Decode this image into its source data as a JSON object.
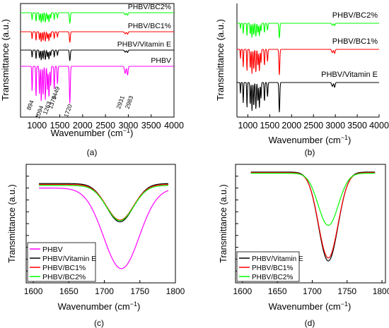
{
  "chart_data": [
    {
      "type": "line",
      "panel_label": "(a)",
      "xlabel": "Wavenumber",
      "xlabel_unit_base": "(cm",
      "xlabel_unit_sup": "−1",
      "xlabel_unit_close": ")",
      "ylabel": "Transmittance (a.u.)",
      "xlim": [
        640,
        4000
      ],
      "x_ticks": [
        "1000",
        "1500",
        "2000",
        "2500",
        "3000",
        "3500",
        "4000"
      ],
      "y_ticks": [],
      "series": [
        {
          "name": "PHBV/BC2%",
          "color": "#00ff00",
          "offset": 3,
          "amp": 0.26
        },
        {
          "name": "PHBV/BC1%",
          "color": "#ff0000",
          "offset": 2,
          "amp": 0.26
        },
        {
          "name": "PHBV/Vitamin E",
          "color": "#000000",
          "offset": 1,
          "amp": 0.26
        },
        {
          "name": "PHBV",
          "color": "#ff00ff",
          "offset": 0,
          "amp": 0.9
        }
      ],
      "bands": [
        {
          "x": 894,
          "depth": 0.65,
          "width": 7
        },
        {
          "x": 980,
          "depth": 0.8,
          "width": 7
        },
        {
          "x": 1054,
          "depth": 0.7,
          "width": 8
        },
        {
          "x": 1094,
          "depth": 0.9,
          "width": 8
        },
        {
          "x": 1135,
          "depth": 0.75,
          "width": 8
        },
        {
          "x": 1183,
          "depth": 0.85,
          "width": 9
        },
        {
          "x": 1228,
          "depth": 0.6,
          "width": 8
        },
        {
          "x": 1263,
          "depth": 0.8,
          "width": 9
        },
        {
          "x": 1300,
          "depth": 0.5,
          "width": 8
        },
        {
          "x": 1379,
          "depth": 0.6,
          "width": 8
        },
        {
          "x": 1449,
          "depth": 0.45,
          "width": 9
        },
        {
          "x": 1720,
          "depth": 0.95,
          "width": 10
        },
        {
          "x": 2931,
          "depth": 0.18,
          "width": 15
        },
        {
          "x": 2983,
          "depth": 0.22,
          "width": 12
        }
      ],
      "annotations": [
        "894",
        "1094",
        "1263",
        "1379",
        "1449",
        "1720",
        "2931",
        "2983"
      ]
    },
    {
      "type": "line",
      "panel_label": "(b)",
      "xlabel": "Wavenumber",
      "xlabel_unit_base": "(cm",
      "xlabel_unit_sup": "−1",
      "xlabel_unit_close": ")",
      "ylabel": "Transmittance (a.u.)",
      "xlim": [
        750,
        4000
      ],
      "x_ticks": [
        "1000",
        "1500",
        "2000",
        "2500",
        "3000",
        "3500",
        "4000"
      ],
      "y_ticks": [],
      "series": [
        {
          "name": "PHBV/BC2%",
          "color": "#00ff00",
          "offset": 2,
          "amp": 0.36
        },
        {
          "name": "PHBV/BC1%",
          "color": "#ff0000",
          "offset": 1,
          "amp": 0.62
        },
        {
          "name": "PHBV/Vitamin E",
          "color": "#000000",
          "offset": 0,
          "amp": 0.72
        }
      ],
      "bands": [
        {
          "x": 830,
          "depth": 0.35,
          "width": 6
        },
        {
          "x": 894,
          "depth": 0.65,
          "width": 7
        },
        {
          "x": 980,
          "depth": 0.8,
          "width": 7
        },
        {
          "x": 1054,
          "depth": 0.7,
          "width": 8
        },
        {
          "x": 1094,
          "depth": 0.9,
          "width": 8
        },
        {
          "x": 1135,
          "depth": 0.75,
          "width": 8
        },
        {
          "x": 1183,
          "depth": 0.85,
          "width": 9
        },
        {
          "x": 1228,
          "depth": 0.6,
          "width": 8
        },
        {
          "x": 1263,
          "depth": 0.8,
          "width": 9
        },
        {
          "x": 1300,
          "depth": 0.5,
          "width": 8
        },
        {
          "x": 1379,
          "depth": 0.6,
          "width": 8
        },
        {
          "x": 1449,
          "depth": 0.45,
          "width": 9
        },
        {
          "x": 1720,
          "depth": 0.95,
          "width": 10
        },
        {
          "x": 2931,
          "depth": 0.12,
          "width": 15
        },
        {
          "x": 2983,
          "depth": 0.15,
          "width": 12
        }
      ]
    },
    {
      "type": "line",
      "panel_label": "(c)",
      "xlabel": "Wavenumber",
      "xlabel_unit_base": "(cm",
      "xlabel_unit_sup": "−1",
      "xlabel_unit_close": ")",
      "ylabel": "Transmittance (a.u.)",
      "xlim": [
        1590,
        1800
      ],
      "ylim": [
        0,
        1
      ],
      "x_ticks": [
        1600,
        1650,
        1700,
        1750,
        1800
      ],
      "y_ticks": [
        0.1,
        0.2,
        0.3,
        0.4,
        0.5,
        0.6,
        0.7,
        0.8,
        0.9
      ],
      "legend_position": "bottom-left",
      "series": [
        {
          "name": "PHBV",
          "color": "#ff00ff",
          "x_start": 1608,
          "x_end": 1790,
          "baseline": 0.8,
          "center": 1724,
          "depth": 0.68,
          "sigma": 25
        },
        {
          "name": "PHBV/Vitamin E",
          "color": "#000000",
          "x_start": 1608,
          "x_end": 1790,
          "baseline": 0.838,
          "center": 1722,
          "depth": 0.323,
          "sigma": 19
        },
        {
          "name": "PHBV/BC1%",
          "color": "#ff0000",
          "x_start": 1608,
          "x_end": 1790,
          "baseline": 0.83,
          "center": 1722,
          "depth": 0.3,
          "sigma": 19
        },
        {
          "name": "PHBV/BC2%",
          "color": "#00ff00",
          "x_start": 1608,
          "x_end": 1790,
          "baseline": 0.822,
          "center": 1722,
          "depth": 0.297,
          "sigma": 19
        }
      ]
    },
    {
      "type": "line",
      "panel_label": "(d)",
      "xlabel": "Wavenumber",
      "xlabel_unit_base": "(cm",
      "xlabel_unit_sup": "−1",
      "xlabel_unit_close": ")",
      "ylabel": "Transmittance (a.u.)",
      "xlim": [
        1590,
        1805
      ],
      "ylim": [
        0,
        1
      ],
      "x_ticks": [
        1600,
        1650,
        1700,
        1750,
        1800
      ],
      "y_ticks": [
        0.1,
        0.2,
        0.3,
        0.4,
        0.5,
        0.6,
        0.7,
        0.8,
        0.9
      ],
      "legend_position": "bottom-left",
      "series": [
        {
          "name": "PHBV/Vitamin E",
          "color": "#000000",
          "x_start": 1612,
          "x_end": 1790,
          "baseline": 0.935,
          "center": 1723,
          "depth": 0.75,
          "sigma": 14
        },
        {
          "name": "PHBV/BC1%",
          "color": "#ff0000",
          "x_start": 1612,
          "x_end": 1790,
          "baseline": 0.93,
          "center": 1723,
          "depth": 0.72,
          "sigma": 14
        },
        {
          "name": "PHBV/BC2%",
          "color": "#00ff00",
          "x_start": 1612,
          "x_end": 1790,
          "baseline": 0.925,
          "center": 1723,
          "depth": 0.44,
          "sigma": 14.5
        }
      ]
    }
  ]
}
